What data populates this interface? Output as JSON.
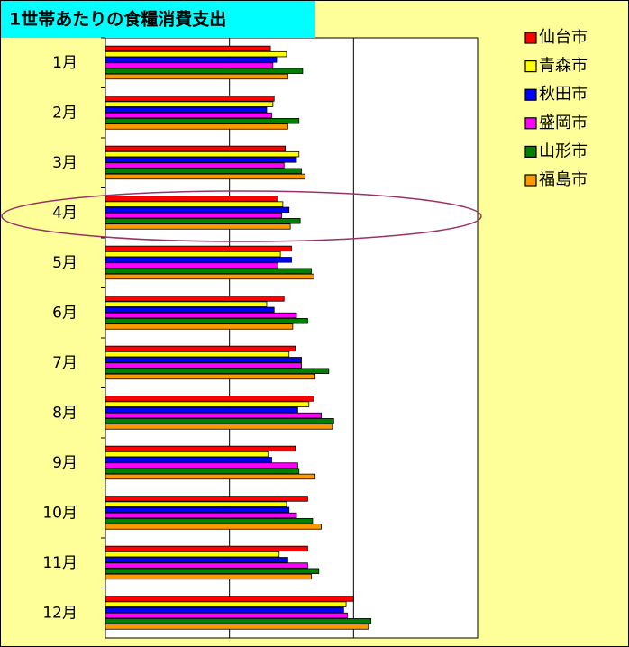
{
  "chart_data": {
    "type": "bar",
    "orientation": "horizontal",
    "title": "1世帯あたりの食糧消費支出",
    "categories": [
      "1月",
      "2月",
      "3月",
      "4月",
      "5月",
      "6月",
      "7月",
      "8月",
      "9月",
      "10月",
      "11月",
      "12月"
    ],
    "series": [
      {
        "name": "仙台市",
        "color": "#ff0000",
        "values": [
          1.33,
          1.36,
          1.45,
          1.39,
          1.5,
          1.44,
          1.53,
          1.68,
          1.53,
          1.63,
          1.63,
          2.0
        ]
      },
      {
        "name": "青森市",
        "color": "#ffff00",
        "values": [
          1.46,
          1.35,
          1.56,
          1.43,
          1.41,
          1.3,
          1.48,
          1.64,
          1.31,
          1.46,
          1.4,
          1.94
        ]
      },
      {
        "name": "秋田市",
        "color": "#0000ff",
        "values": [
          1.38,
          1.3,
          1.54,
          1.48,
          1.5,
          1.36,
          1.58,
          1.55,
          1.34,
          1.48,
          1.47,
          1.92
        ]
      },
      {
        "name": "盛岡市",
        "color": "#ff00ff",
        "values": [
          1.35,
          1.34,
          1.44,
          1.42,
          1.39,
          1.54,
          1.58,
          1.74,
          1.55,
          1.54,
          1.63,
          1.95
        ]
      },
      {
        "name": "山形市",
        "color": "#008000",
        "values": [
          1.59,
          1.56,
          1.58,
          1.57,
          1.66,
          1.63,
          1.8,
          1.84,
          1.56,
          1.67,
          1.72,
          2.14
        ]
      },
      {
        "name": "福島市",
        "color": "#ff9900",
        "values": [
          1.47,
          1.47,
          1.61,
          1.49,
          1.68,
          1.51,
          1.69,
          1.83,
          1.69,
          1.74,
          1.66,
          2.12
        ]
      }
    ],
    "xlim": [
      0,
      3
    ],
    "grid": true,
    "legend": "right"
  }
}
